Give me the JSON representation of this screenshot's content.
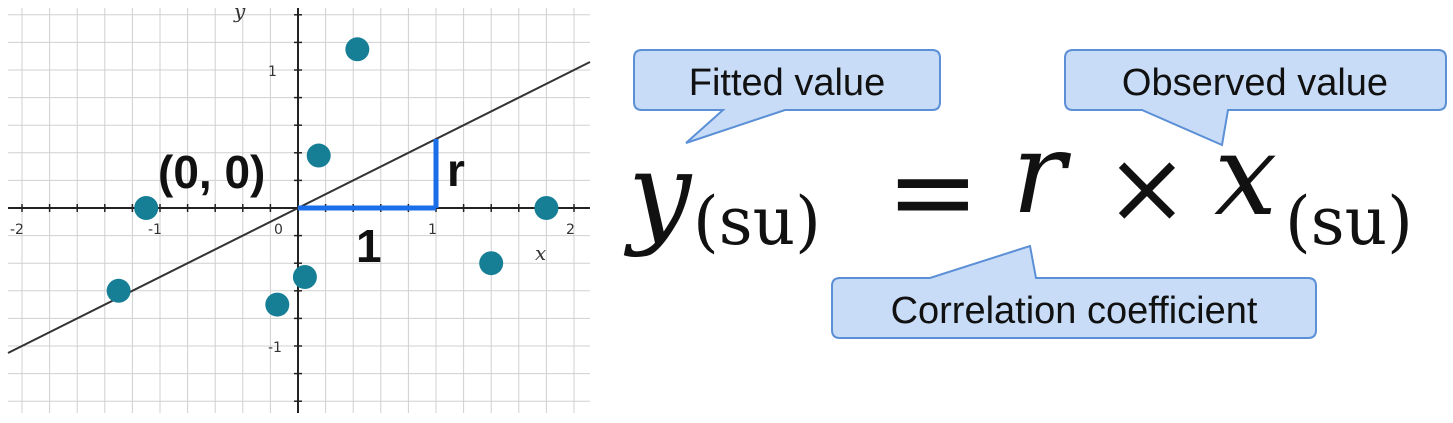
{
  "chart_data": {
    "type": "scatter",
    "xlabel": "x",
    "ylabel": "y",
    "xlim": [
      -2.1,
      2.1
    ],
    "ylim": [
      -1.45,
      1.45
    ],
    "x_ticks": [
      "-2",
      "-1",
      "0",
      "1",
      "2"
    ],
    "y_ticks": [
      "1",
      "-1"
    ],
    "grid": true,
    "points": [
      {
        "x": 0.43,
        "y": 1.15
      },
      {
        "x": 0.15,
        "y": 0.38
      },
      {
        "x": -1.1,
        "y": 0.0
      },
      {
        "x": 1.8,
        "y": 0.0
      },
      {
        "x": -1.3,
        "y": -0.6
      },
      {
        "x": 0.05,
        "y": -0.5
      },
      {
        "x": -0.15,
        "y": -0.7
      },
      {
        "x": 1.4,
        "y": -0.4
      }
    ],
    "fit_line": {
      "slope": 0.5,
      "intercept": 0
    },
    "annotations": {
      "origin_label": "(0, 0)",
      "run_label": "1",
      "rise_label": "r"
    }
  },
  "colors": {
    "point": "#167f96",
    "fit_line": "#333333",
    "triangle": "#1a6fe8",
    "grid": "#d0d0d0",
    "axis": "#222222",
    "callout_fill": "#c8dcf7",
    "callout_stroke": "#5b8fd6"
  },
  "formula": {
    "lhs_var": "y",
    "lhs_sub": "(su)",
    "equals": "=",
    "coef": "r",
    "times": "×",
    "rhs_var": "x",
    "rhs_sub": "(su)"
  },
  "callouts": {
    "fitted": "Fitted value",
    "observed": "Observed value",
    "correlation": "Correlation coefficient"
  }
}
